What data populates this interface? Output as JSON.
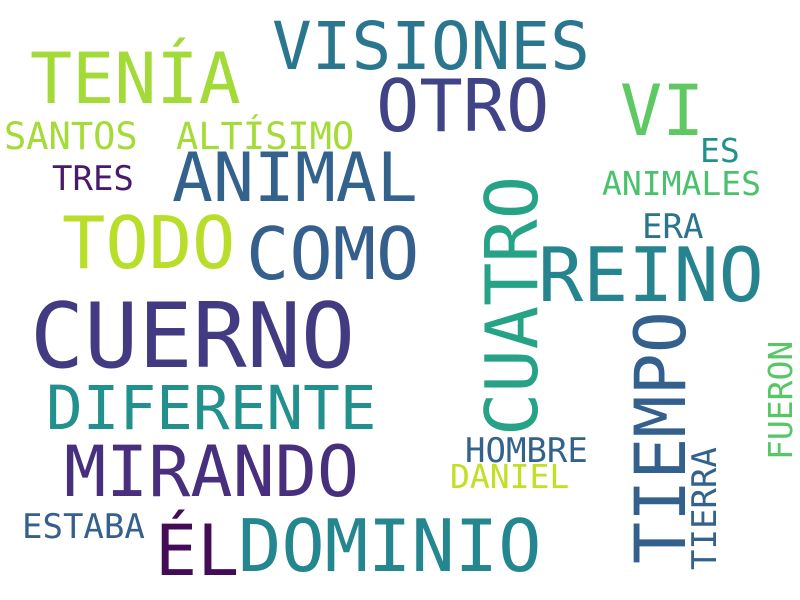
{
  "words": {
    "cuerno": "CUERNO",
    "reino": "REINO",
    "tenia": "TENÍA",
    "como": "COMO",
    "cuatro": "CUATRO",
    "otro": "OTRO",
    "todo": "TODO",
    "animal": "ANIMAL",
    "visiones": "VISIONES",
    "dominio": "DOMINIO",
    "mirando": "MIRANDO",
    "diferente": "DIFERENTE",
    "tiempo": "TIEMPO",
    "vi": "VI",
    "el": "ÉL",
    "santos": "SANTOS",
    "altisimo": "ALTÍSIMO",
    "tierra": "TIERRA",
    "animales": "ANIMALES",
    "hombre": "HOMBRE",
    "fueron": "FUERON",
    "estaba": "ESTABA",
    "daniel": "DANIEL",
    "tres": "TRES",
    "era": "ERA",
    "es": "ES"
  },
  "colors": {
    "cuerno": "#433b82",
    "reino": "#25848e",
    "tenia": "#a2da38",
    "como": "#355f8d",
    "cuatro": "#26a386",
    "otro": "#414387",
    "todo": "#b8de29",
    "animal": "#33638d",
    "visiones": "#2a768e",
    "dominio": "#24868e",
    "mirando": "#472f7d",
    "diferente": "#22908d",
    "tiempo": "#34608d",
    "vi": "#5ec962",
    "el": "#440c56",
    "santos": "#a5db36",
    "altisimo": "#a5db36",
    "tierra": "#33638d",
    "animales": "#4ac16d",
    "hombre": "#33638d",
    "fueron": "#56c667",
    "estaba": "#355f8d",
    "daniel": "#c2df23",
    "tres": "#481a6c",
    "era": "#2c738e",
    "es": "#21918c"
  }
}
